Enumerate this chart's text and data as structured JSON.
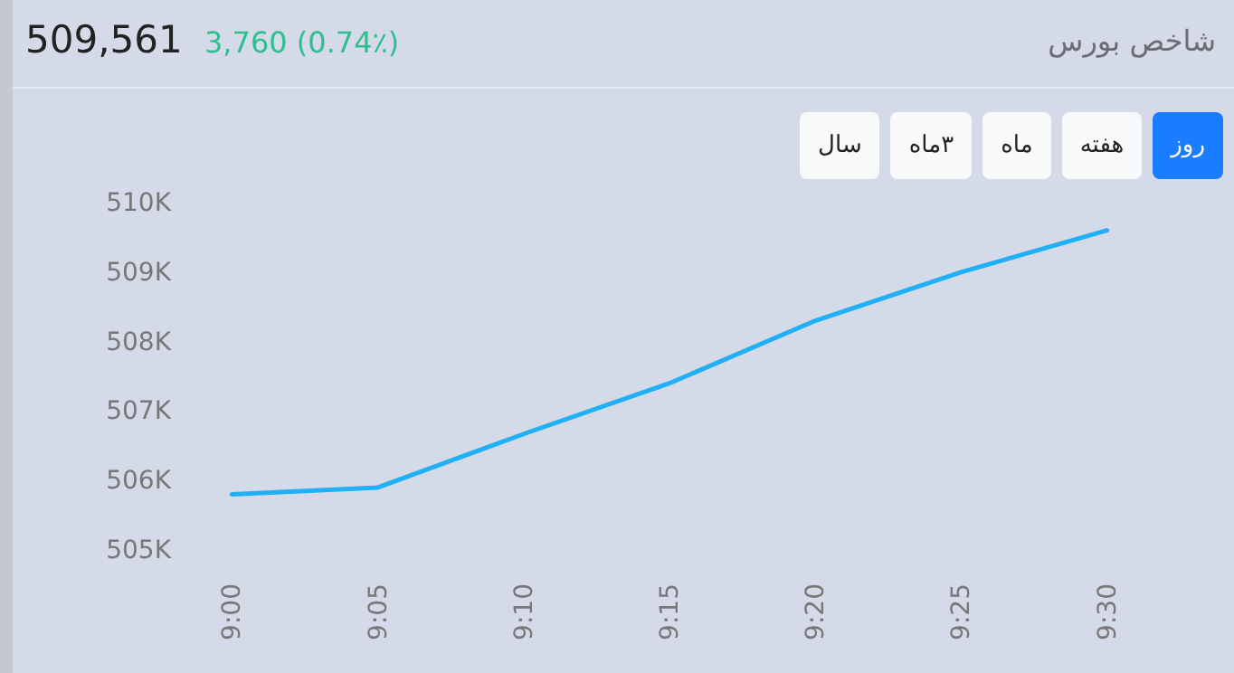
{
  "chart_data": {
    "type": "line",
    "title": "شاخص بورس",
    "annotations": [
      "509,561",
      "3,760 (0.74٪)",
      "روز",
      "هفته",
      "ماه",
      "۳ماه",
      "سال"
    ],
    "categories": [
      "9:00",
      "9:05",
      "9:10",
      "9:15",
      "9:20",
      "9:25",
      "9:30"
    ],
    "series": [
      {
        "color": "#1fb0f5",
        "values": [
          505800,
          505900,
          506670,
          507400,
          508300,
          509000,
          509600
        ]
      }
    ],
    "ylim": [
      505000,
      510000
    ],
    "yticks": [
      {
        "value": 505000,
        "label": "505K"
      },
      {
        "value": 506000,
        "label": "506K"
      },
      {
        "value": 507000,
        "label": "507K"
      },
      {
        "value": 508000,
        "label": "508K"
      },
      {
        "value": 509000,
        "label": "509K"
      },
      {
        "value": 510000,
        "label": "510K"
      }
    ]
  }
}
